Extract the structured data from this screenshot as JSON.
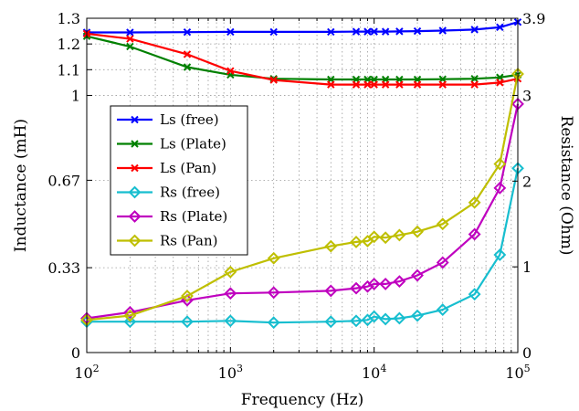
{
  "chart_data": {
    "type": "line",
    "title": "",
    "xlabel": "Frequency (Hz)",
    "ylabel": "Inductance (mH)",
    "y2label": "Resistance (Ohm)",
    "xscale": "log",
    "xlim": [
      100,
      100000
    ],
    "ylim": [
      0,
      1.3
    ],
    "y2lim": [
      0,
      3.9
    ],
    "grid": true,
    "legend_position": "center-left",
    "x_ticks": [
      {
        "value": 100,
        "base": "10",
        "exp": "2"
      },
      {
        "value": 1000,
        "base": "10",
        "exp": "3"
      },
      {
        "value": 10000,
        "base": "10",
        "exp": "4"
      },
      {
        "value": 100000,
        "base": "10",
        "exp": "5"
      }
    ],
    "y_ticks": [
      {
        "value": 0,
        "label": "0"
      },
      {
        "value": 0.33,
        "label": "0.33"
      },
      {
        "value": 0.67,
        "label": "0.67"
      },
      {
        "value": 1.0,
        "label": "1"
      },
      {
        "value": 1.1,
        "label": "1.1"
      },
      {
        "value": 1.2,
        "label": "1.2"
      },
      {
        "value": 1.3,
        "label": "1.3"
      }
    ],
    "y2_ticks": [
      {
        "value": 0,
        "label": "0"
      },
      {
        "value": 1,
        "label": "1"
      },
      {
        "value": 2,
        "label": "2"
      },
      {
        "value": 3,
        "label": "3"
      },
      {
        "value": 3.9,
        "label": "3.9"
      }
    ],
    "x": [
      100,
      200,
      500,
      1000,
      2000,
      5000,
      7500,
      9000,
      10000,
      12000,
      15000,
      20000,
      30000,
      50000,
      75000,
      100000
    ],
    "series": [
      {
        "name": "Ls (free)",
        "axis": "left",
        "marker": "x",
        "color": "#0000ff",
        "values": [
          1.245,
          1.245,
          1.246,
          1.247,
          1.247,
          1.247,
          1.248,
          1.248,
          1.248,
          1.248,
          1.249,
          1.25,
          1.252,
          1.256,
          1.265,
          1.285
        ]
      },
      {
        "name": "Ls (Plate)",
        "axis": "left",
        "marker": "x",
        "color": "#008000",
        "values": [
          1.23,
          1.19,
          1.11,
          1.08,
          1.065,
          1.062,
          1.062,
          1.062,
          1.062,
          1.062,
          1.062,
          1.062,
          1.063,
          1.065,
          1.07,
          1.08
        ]
      },
      {
        "name": "Ls (Pan)",
        "axis": "left",
        "marker": "x",
        "color": "#ff0000",
        "values": [
          1.24,
          1.22,
          1.16,
          1.095,
          1.06,
          1.042,
          1.042,
          1.042,
          1.042,
          1.042,
          1.042,
          1.042,
          1.042,
          1.042,
          1.05,
          1.065
        ]
      },
      {
        "name": "Rs (free)",
        "axis": "right",
        "marker": "diamond",
        "color": "#17becf",
        "values": [
          0.36,
          0.36,
          0.36,
          0.37,
          0.35,
          0.36,
          0.37,
          0.38,
          0.42,
          0.39,
          0.4,
          0.43,
          0.5,
          0.68,
          1.14,
          2.15
        ]
      },
      {
        "name": "Rs (Plate)",
        "axis": "right",
        "marker": "diamond",
        "color": "#bf00bf",
        "values": [
          0.4,
          0.47,
          0.61,
          0.69,
          0.7,
          0.72,
          0.75,
          0.77,
          0.8,
          0.8,
          0.83,
          0.9,
          1.05,
          1.38,
          1.92,
          2.9
        ]
      },
      {
        "name": "Rs (Pan)",
        "axis": "right",
        "marker": "diamond",
        "color": "#bfbf00",
        "values": [
          0.38,
          0.43,
          0.66,
          0.94,
          1.1,
          1.24,
          1.29,
          1.3,
          1.35,
          1.34,
          1.37,
          1.41,
          1.5,
          1.75,
          2.2,
          3.25
        ]
      }
    ]
  }
}
